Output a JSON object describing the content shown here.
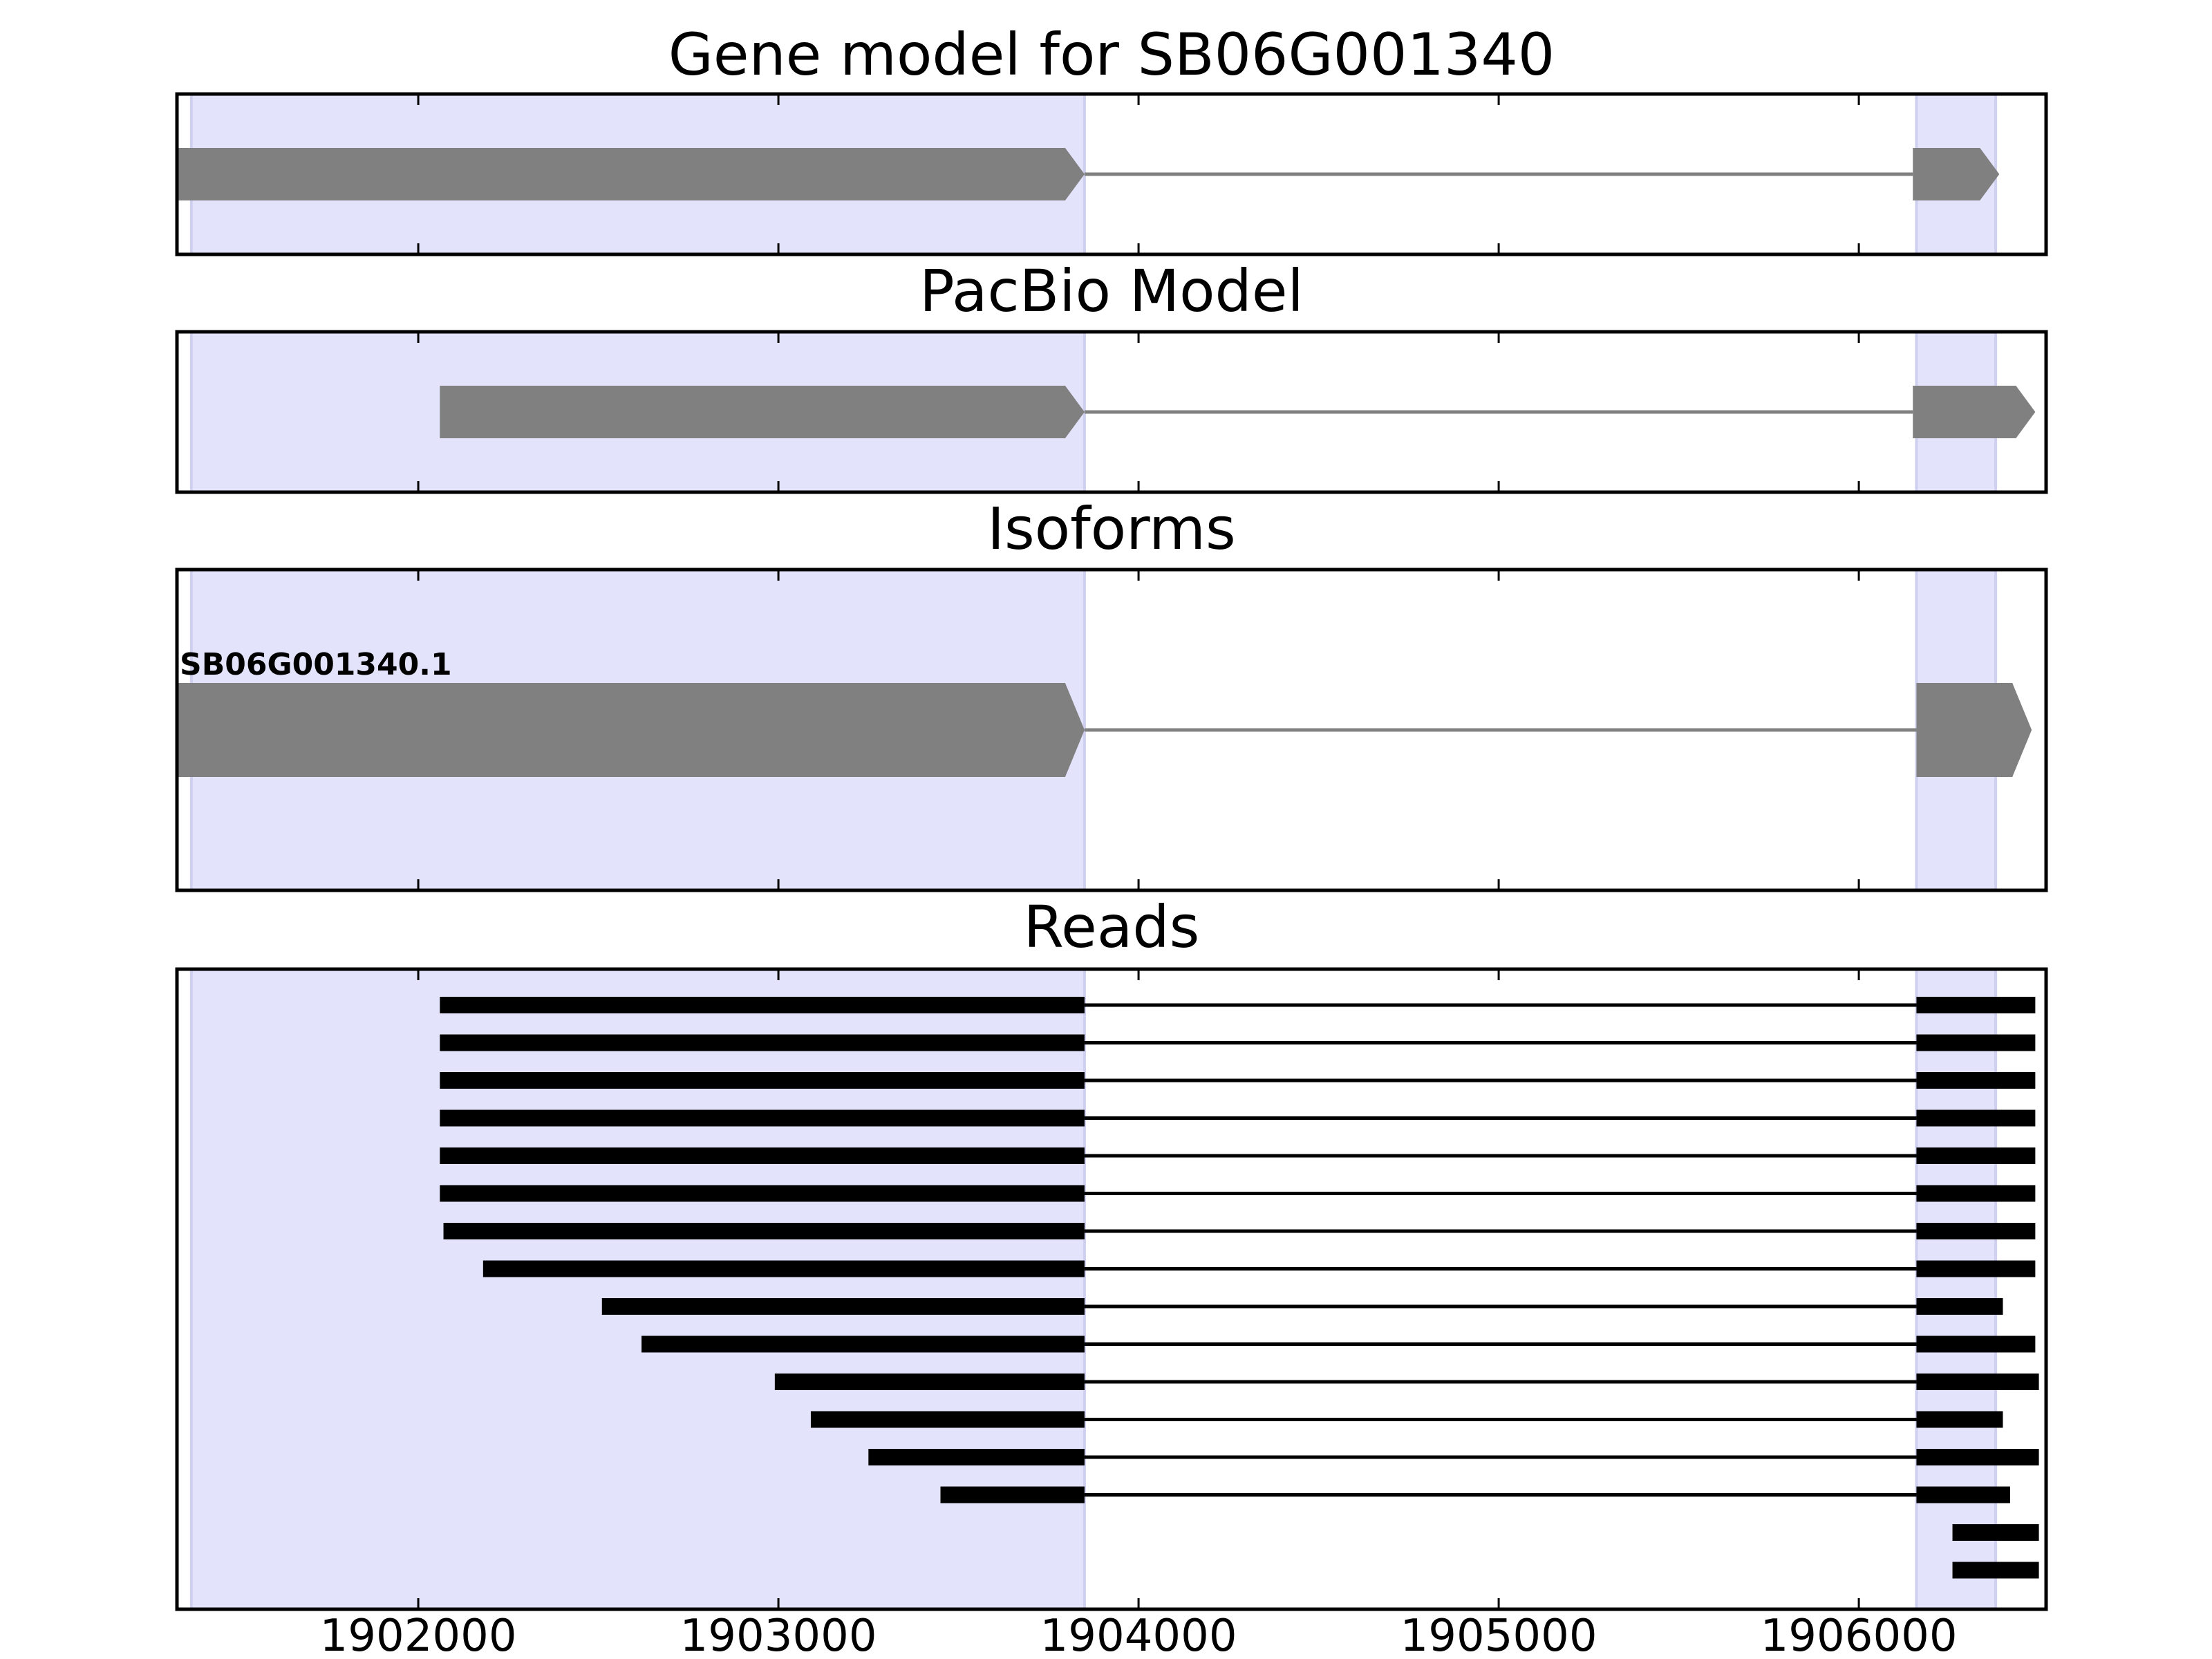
{
  "chart_data": {
    "type": "gene-model-tracks",
    "xlim": [
      1901330,
      1906520
    ],
    "x_ticks": [
      1902000,
      1903000,
      1904000,
      1905000,
      1906000
    ],
    "x_tick_labels": [
      "1902000",
      "1903000",
      "1904000",
      "1905000",
      "1906000"
    ],
    "highlight_color": "#e3e3fb",
    "highlight_edge_color": "#cfcff0",
    "feature_color": "#808080",
    "read_color": "#000000",
    "highlight_regions": [
      [
        1901370,
        1903850
      ],
      [
        1906160,
        1906380
      ]
    ],
    "panels": [
      {
        "title": "Gene model for SB06G001340",
        "kind": "model",
        "models": [
          {
            "exons": [
              [
                1901330,
                1903850
              ],
              [
                1906150,
                1906390
              ]
            ]
          }
        ]
      },
      {
        "title": "PacBio Model",
        "kind": "model",
        "models": [
          {
            "exons": [
              [
                1902060,
                1903850
              ],
              [
                1906150,
                1906490
              ]
            ]
          }
        ]
      },
      {
        "title": "Isoforms",
        "kind": "model",
        "models": [
          {
            "label": "SB06G001340.1",
            "exons": [
              [
                1901330,
                1903850
              ],
              [
                1906160,
                1906480
              ]
            ]
          }
        ]
      },
      {
        "title": "Reads",
        "kind": "reads",
        "reads": [
          {
            "exons": [
              [
                1902060,
                1903850
              ],
              [
                1906160,
                1906490
              ]
            ]
          },
          {
            "exons": [
              [
                1902060,
                1903850
              ],
              [
                1906160,
                1906490
              ]
            ]
          },
          {
            "exons": [
              [
                1902060,
                1903850
              ],
              [
                1906160,
                1906490
              ]
            ]
          },
          {
            "exons": [
              [
                1902060,
                1903850
              ],
              [
                1906160,
                1906490
              ]
            ]
          },
          {
            "exons": [
              [
                1902060,
                1903850
              ],
              [
                1906160,
                1906490
              ]
            ]
          },
          {
            "exons": [
              [
                1902060,
                1903850
              ],
              [
                1906160,
                1906490
              ]
            ]
          },
          {
            "exons": [
              [
                1902070,
                1903850
              ],
              [
                1906160,
                1906490
              ]
            ]
          },
          {
            "exons": [
              [
                1902180,
                1903850
              ],
              [
                1906160,
                1906490
              ]
            ]
          },
          {
            "exons": [
              [
                1902510,
                1903850
              ],
              [
                1906160,
                1906400
              ]
            ]
          },
          {
            "exons": [
              [
                1902620,
                1903850
              ],
              [
                1906160,
                1906490
              ]
            ]
          },
          {
            "exons": [
              [
                1902990,
                1903850
              ],
              [
                1906160,
                1906500
              ]
            ]
          },
          {
            "exons": [
              [
                1903090,
                1903850
              ],
              [
                1906160,
                1906400
              ]
            ]
          },
          {
            "exons": [
              [
                1903250,
                1903850
              ],
              [
                1906160,
                1906500
              ]
            ]
          },
          {
            "exons": [
              [
                1903450,
                1903850
              ],
              [
                1906160,
                1906420
              ]
            ]
          },
          {
            "exons": [
              [
                1906260,
                1906500
              ]
            ]
          },
          {
            "exons": [
              [
                1906260,
                1906500
              ]
            ]
          }
        ]
      }
    ]
  }
}
